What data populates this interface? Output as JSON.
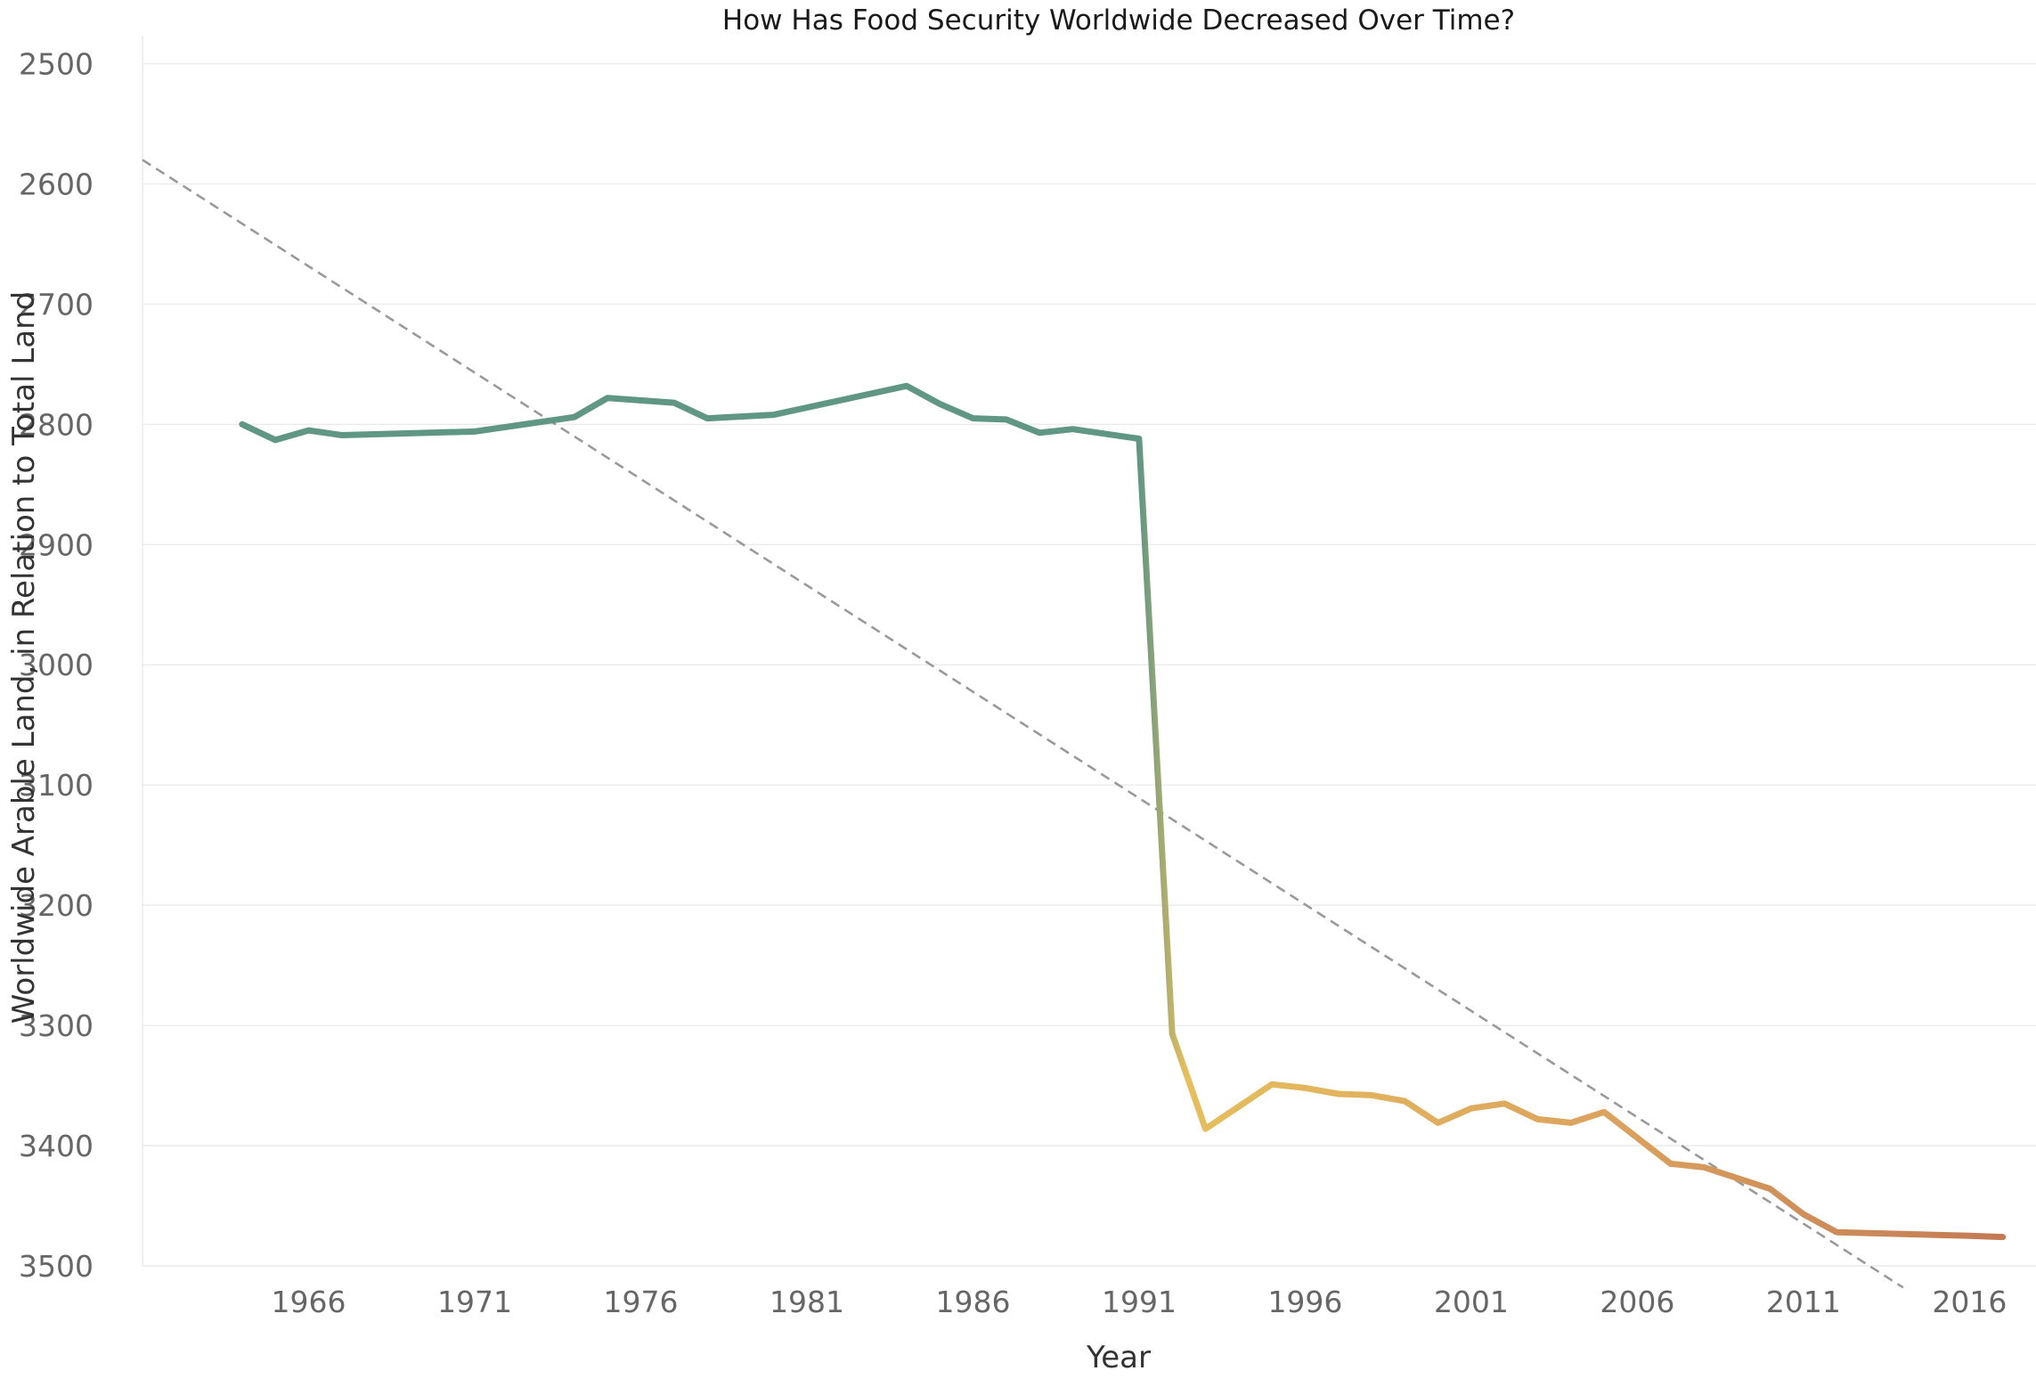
{
  "chart_data": {
    "type": "line",
    "title": "How Has Food Security Worldwide Decreased Over Time?",
    "xlabel": "Year",
    "ylabel": "Worldwide Arable Land, in Relation to Total Land",
    "xlim": [
      1961,
      2018
    ],
    "ylim": [
      2490,
      3500
    ],
    "y_reversed": true,
    "y_ticks": [
      2500,
      2600,
      2700,
      2800,
      2900,
      3000,
      3100,
      3200,
      3300,
      3400,
      3500
    ],
    "x_ticks": [
      1966,
      1971,
      1976,
      1981,
      1986,
      1991,
      1996,
      2001,
      2006,
      2011,
      2016
    ],
    "grid": true,
    "colors": {
      "early": "#5f9684",
      "mid": "#e6be5e",
      "late": "#c37a55",
      "trend": "#9a9a9a"
    },
    "series": [
      {
        "x": [
          1964,
          1965,
          1966,
          1967,
          1971,
          1974,
          1975,
          1977,
          1978,
          1980,
          1984,
          1985,
          1986,
          1987,
          1988,
          1989,
          1991,
          1992,
          1993,
          1995,
          1996,
          1997,
          1998,
          1999,
          2000,
          2001,
          2002,
          2003,
          2004,
          2005,
          2007,
          2008,
          2010,
          2011,
          2012,
          2016,
          2017
        ],
        "y": [
          2800,
          2813,
          2805,
          2809,
          2806,
          2794,
          2778,
          2782,
          2795,
          2792,
          2768,
          2783,
          2795,
          2796,
          2807,
          2804,
          2812,
          3307,
          3386,
          3349,
          3352,
          3357,
          3358,
          3363,
          3381,
          3369,
          3365,
          3378,
          3381,
          3372,
          3415,
          3418,
          3436,
          3457,
          3472,
          3475,
          3476
        ]
      }
    ],
    "trendline": {
      "style": "dashed",
      "x": [
        1961,
        2014
      ],
      "y": [
        2580,
        3518
      ]
    }
  }
}
